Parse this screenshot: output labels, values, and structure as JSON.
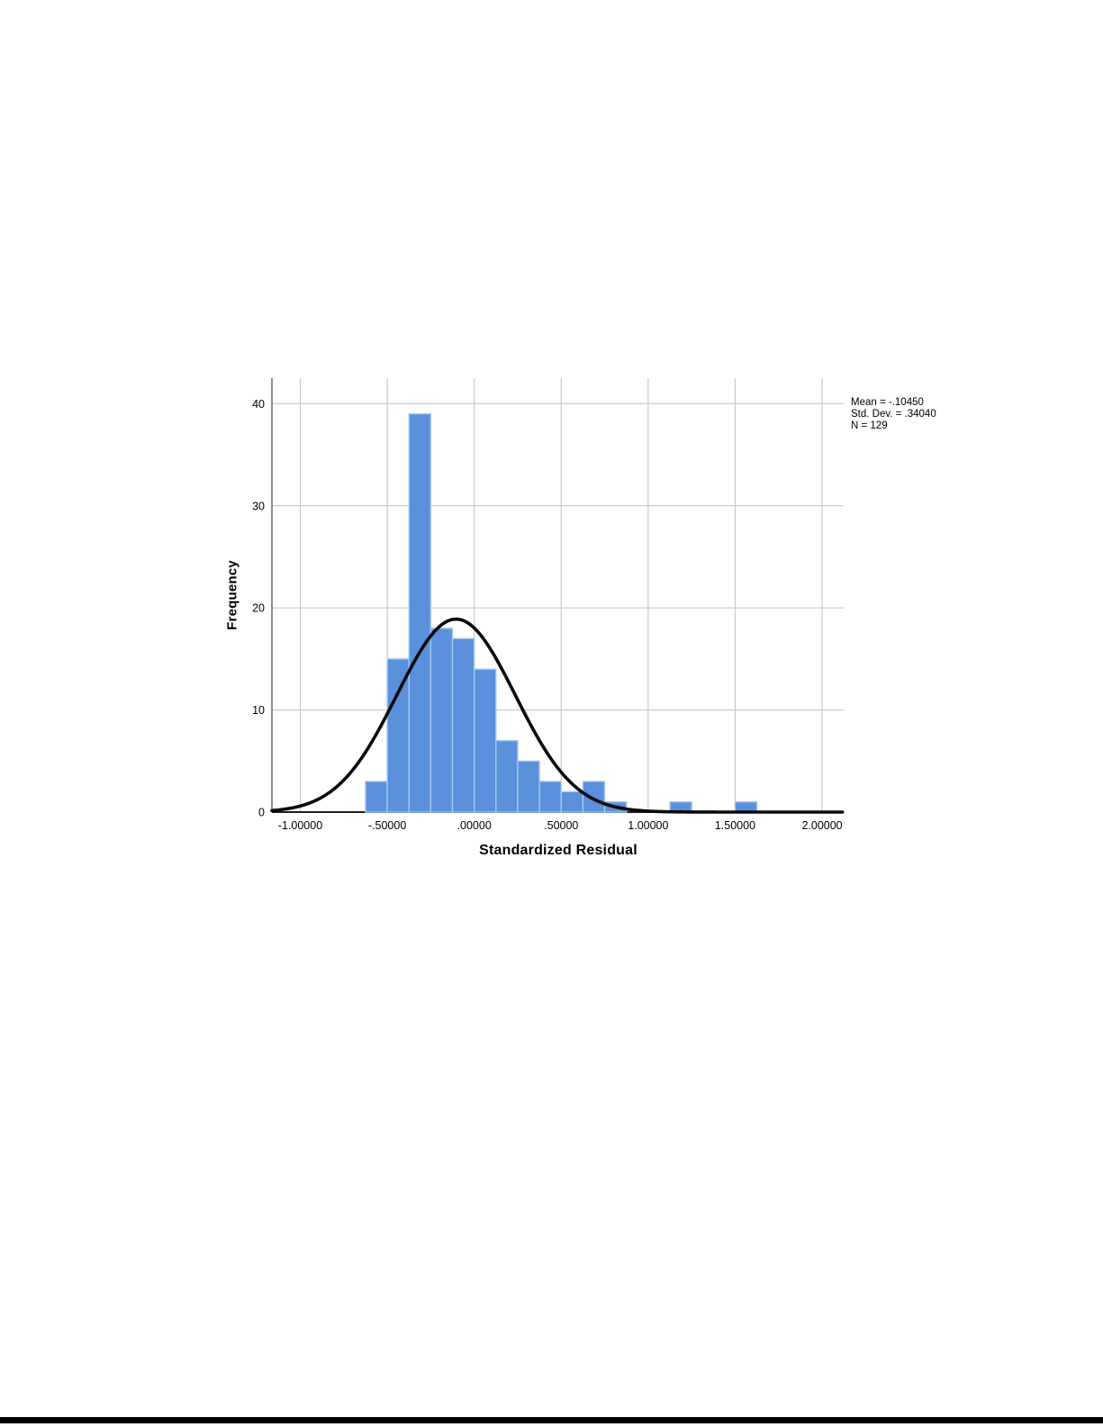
{
  "chart_data": {
    "type": "bar",
    "subtype": "histogram-with-normal-curve",
    "title": "",
    "xlabel": "Standardized Residual",
    "ylabel": "Frequency",
    "bin_start": -0.625,
    "bin_width": 0.125,
    "counts": [
      3,
      15,
      39,
      18,
      17,
      14,
      7,
      5,
      3,
      2,
      3,
      1,
      0,
      0,
      1,
      0,
      0,
      1
    ],
    "xlim": [
      -1.163,
      2.124
    ],
    "ylim": [
      0,
      42.5
    ],
    "grid": true,
    "x_ticks": [
      {
        "value": -1.0,
        "label": "-1.00000"
      },
      {
        "value": -0.5,
        "label": "-.50000"
      },
      {
        "value": 0.0,
        "label": ".00000"
      },
      {
        "value": 0.5,
        "label": ".50000"
      },
      {
        "value": 1.0,
        "label": "1.00000"
      },
      {
        "value": 1.5,
        "label": "1.50000"
      },
      {
        "value": 2.0,
        "label": "2.00000"
      }
    ],
    "y_ticks": [
      {
        "value": 0,
        "label": "0"
      },
      {
        "value": 10,
        "label": "10"
      },
      {
        "value": 20,
        "label": "20"
      },
      {
        "value": 30,
        "label": "30"
      },
      {
        "value": 40,
        "label": "40"
      }
    ],
    "normal_curve": {
      "mean": -0.1045,
      "std_dev": 0.3404,
      "n": 129
    },
    "legend_position": "top-right-outside",
    "stats_legend": [
      "Mean = -.10450",
      "Std. Dev. = .34040",
      "N = 129"
    ],
    "colors": {
      "bar_fill": "#5B90DC",
      "bar_border": "#A7C9F0",
      "curve": "#0a0a0a",
      "grid": "#c9c9c9",
      "x_axis": "#1f1f1f",
      "y_axis": "#6b6b6b",
      "text": "#000000"
    }
  }
}
